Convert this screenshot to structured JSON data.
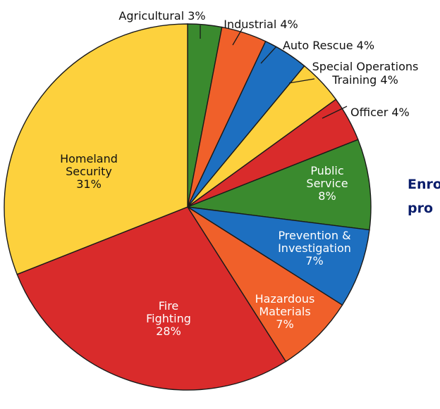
{
  "chart_data": {
    "type": "pie",
    "title_lines": [
      "Enro",
      "pro"
    ],
    "colors": {
      "green": "#3a8a2e",
      "orange": "#f0602a",
      "blue": "#1d6fc0",
      "yellow": "#fdd13d",
      "red": "#d92b2b"
    },
    "slices": [
      {
        "label": "Agricultural 3%",
        "lines": [
          "Agricultural 3%"
        ],
        "value": 3,
        "color": "#3a8a2e"
      },
      {
        "label": "Industrial 4%",
        "lines": [
          "Industrial 4%"
        ],
        "value": 4,
        "color": "#f0602a"
      },
      {
        "label": "Auto Rescue 4%",
        "lines": [
          "Auto Rescue 4%"
        ],
        "value": 4,
        "color": "#1d6fc0"
      },
      {
        "label": "Special Operations Training 4%",
        "lines": [
          "Special Operations",
          "Training 4%"
        ],
        "value": 4,
        "color": "#fdd13d"
      },
      {
        "label": "Officer 4%",
        "lines": [
          "Officer 4%"
        ],
        "value": 4,
        "color": "#d92b2b"
      },
      {
        "label": "Public Service 8%",
        "lines": [
          "Public",
          "Service",
          "8%"
        ],
        "value": 8,
        "color": "#3a8a2e"
      },
      {
        "label": "Prevention & Investigation 7%",
        "lines": [
          "Prevention &",
          "Investigation",
          "7%"
        ],
        "value": 7,
        "color": "#1d6fc0"
      },
      {
        "label": "Hazardous Materials 7%",
        "lines": [
          "Hazardous",
          "Materials",
          "7%"
        ],
        "value": 7,
        "color": "#f0602a"
      },
      {
        "label": "Fire Fighting 28%",
        "lines": [
          "Fire",
          "Fighting",
          "28%"
        ],
        "value": 28,
        "color": "#d92b2b"
      },
      {
        "label": "Homeland Security 31%",
        "lines": [
          "Homeland",
          "Security",
          "31%"
        ],
        "value": 31,
        "color": "#fdd13d"
      }
    ]
  }
}
